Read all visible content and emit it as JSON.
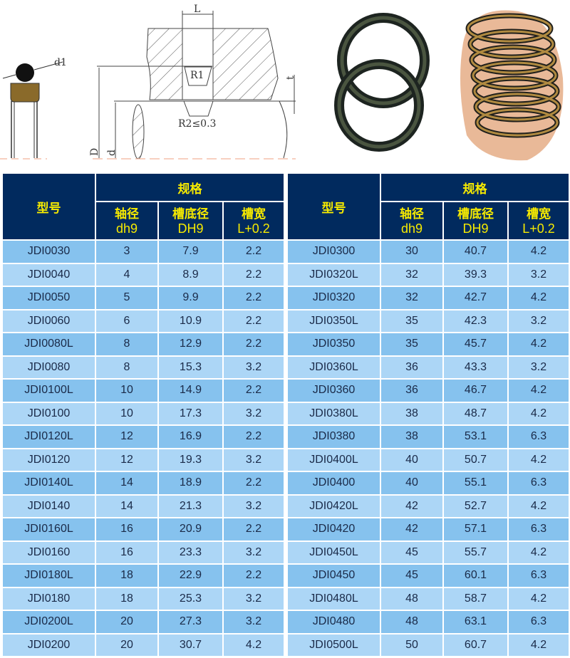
{
  "diagram": {
    "d1": "d1",
    "L": "L",
    "R1": "R1",
    "R2": "R2≤0.3",
    "D": "D",
    "d": "d",
    "t": "t"
  },
  "colors": {
    "header": "#012a5e",
    "header_text": "#f6ea00",
    "row_a": "#86c2ee",
    "row_b": "#acd6f6",
    "seal": "#8a6a2a"
  },
  "headers": {
    "model": "型号",
    "spec": "规格",
    "shaft": "轴径",
    "shaft_tol": "dh9",
    "groove": "槽底径",
    "groove_tol": "DH9",
    "width": "槽宽",
    "width_tol": "L+0.2"
  },
  "left_rows": [
    [
      "JDI0030",
      "3",
      "7.9",
      "2.2"
    ],
    [
      "JDI0040",
      "4",
      "8.9",
      "2.2"
    ],
    [
      "JDI0050",
      "5",
      "9.9",
      "2.2"
    ],
    [
      "JDI0060",
      "6",
      "10.9",
      "2.2"
    ],
    [
      "JDI0080L",
      "8",
      "12.9",
      "2.2"
    ],
    [
      "JDI0080",
      "8",
      "15.3",
      "3.2"
    ],
    [
      "JDI0100L",
      "10",
      "14.9",
      "2.2"
    ],
    [
      "JDI0100",
      "10",
      "17.3",
      "3.2"
    ],
    [
      "JDI0120L",
      "12",
      "16.9",
      "2.2"
    ],
    [
      "JDI0120",
      "12",
      "19.3",
      "3.2"
    ],
    [
      "JDI0140L",
      "14",
      "18.9",
      "2.2"
    ],
    [
      "JDI0140",
      "14",
      "21.3",
      "3.2"
    ],
    [
      "JDI0160L",
      "16",
      "20.9",
      "2.2"
    ],
    [
      "JDI0160",
      "16",
      "23.3",
      "3.2"
    ],
    [
      "JDI0180L",
      "18",
      "22.9",
      "2.2"
    ],
    [
      "JDI0180",
      "18",
      "25.3",
      "3.2"
    ],
    [
      "JDI0200L",
      "20",
      "27.3",
      "3.2"
    ],
    [
      "JDI0200",
      "20",
      "30.7",
      "4.2"
    ]
  ],
  "right_rows": [
    [
      "JDI0300",
      "30",
      "40.7",
      "4.2"
    ],
    [
      "JDI0320L",
      "32",
      "39.3",
      "3.2"
    ],
    [
      "JDI0320",
      "32",
      "42.7",
      "4.2"
    ],
    [
      "JDI0350L",
      "35",
      "42.3",
      "3.2"
    ],
    [
      "JDI0350",
      "35",
      "45.7",
      "4.2"
    ],
    [
      "JDI0360L",
      "36",
      "43.3",
      "3.2"
    ],
    [
      "JDI0360",
      "36",
      "46.7",
      "4.2"
    ],
    [
      "JDI0380L",
      "38",
      "48.7",
      "4.2"
    ],
    [
      "JDI0380",
      "38",
      "53.1",
      "6.3"
    ],
    [
      "JDI0400L",
      "40",
      "50.7",
      "4.2"
    ],
    [
      "JDI0400",
      "40",
      "55.1",
      "6.3"
    ],
    [
      "JDI0420L",
      "42",
      "52.7",
      "4.2"
    ],
    [
      "JDI0420",
      "42",
      "57.1",
      "6.3"
    ],
    [
      "JDI0450L",
      "45",
      "55.7",
      "4.2"
    ],
    [
      "JDI0450",
      "45",
      "60.1",
      "6.3"
    ],
    [
      "JDI0480L",
      "48",
      "58.7",
      "4.2"
    ],
    [
      "JDI0480",
      "48",
      "63.1",
      "6.3"
    ],
    [
      "JDI0500L",
      "50",
      "60.7",
      "4.2"
    ]
  ]
}
